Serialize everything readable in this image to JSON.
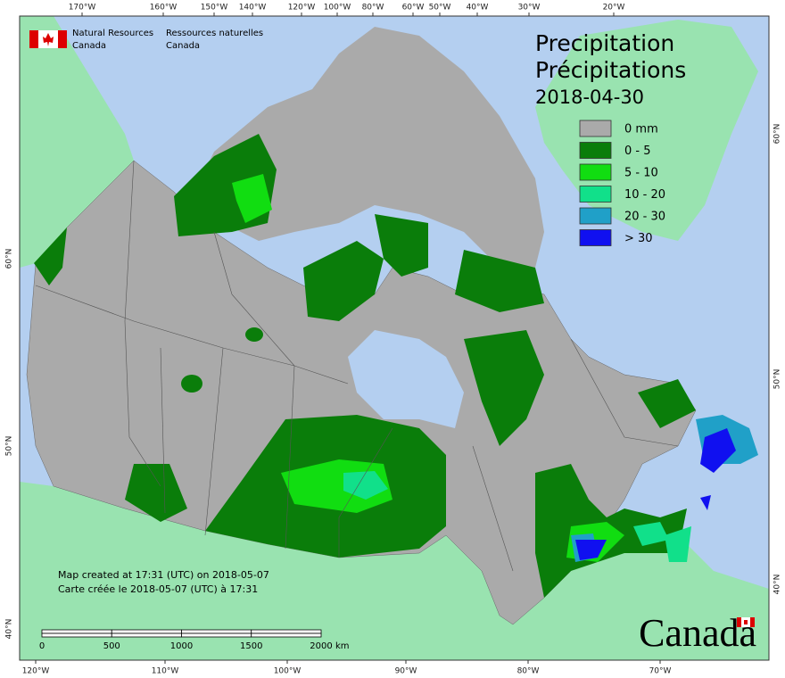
{
  "header": {
    "org_en": [
      "Natural Resources",
      "Canada"
    ],
    "org_fr": [
      "Ressources naturelles",
      "Canada"
    ]
  },
  "title": {
    "en": "Precipitation",
    "fr": "Précipitations",
    "date": "2018-04-30"
  },
  "legend": [
    {
      "label": "0 mm",
      "color": "#aaaaaa"
    },
    {
      "label": "0 - 5",
      "color": "#0a7d0a"
    },
    {
      "label": "5 - 10",
      "color": "#11dd11"
    },
    {
      "label": "10 - 20",
      "color": "#11e08a"
    },
    {
      "label": "20 - 30",
      "color": "#20a0c8"
    },
    {
      "label": "> 30",
      "color": "#1010f0"
    }
  ],
  "graticule": {
    "top": [
      "170°W",
      "160°W",
      "150°W",
      "140°W",
      "120°W",
      "100°W",
      "80°W",
      "60°W",
      "50°W",
      "40°W",
      "30°W",
      "20°W"
    ],
    "bottom": [
      "120°W",
      "110°W",
      "100°W",
      "90°W",
      "80°W",
      "70°W"
    ],
    "left": [
      "60°N",
      "50°N",
      "40°N"
    ],
    "right": [
      "60°N",
      "50°N",
      "40°N"
    ]
  },
  "notes": [
    "Map created at 17:31 (UTC) on 2018-05-07",
    "Carte créée le 2018-05-07 (UTC) à 17:31"
  ],
  "scale_bar": {
    "ticks": [
      "0",
      "500",
      "1000",
      "1500",
      "2000"
    ],
    "unit": "km"
  },
  "wordmark": "Canada"
}
